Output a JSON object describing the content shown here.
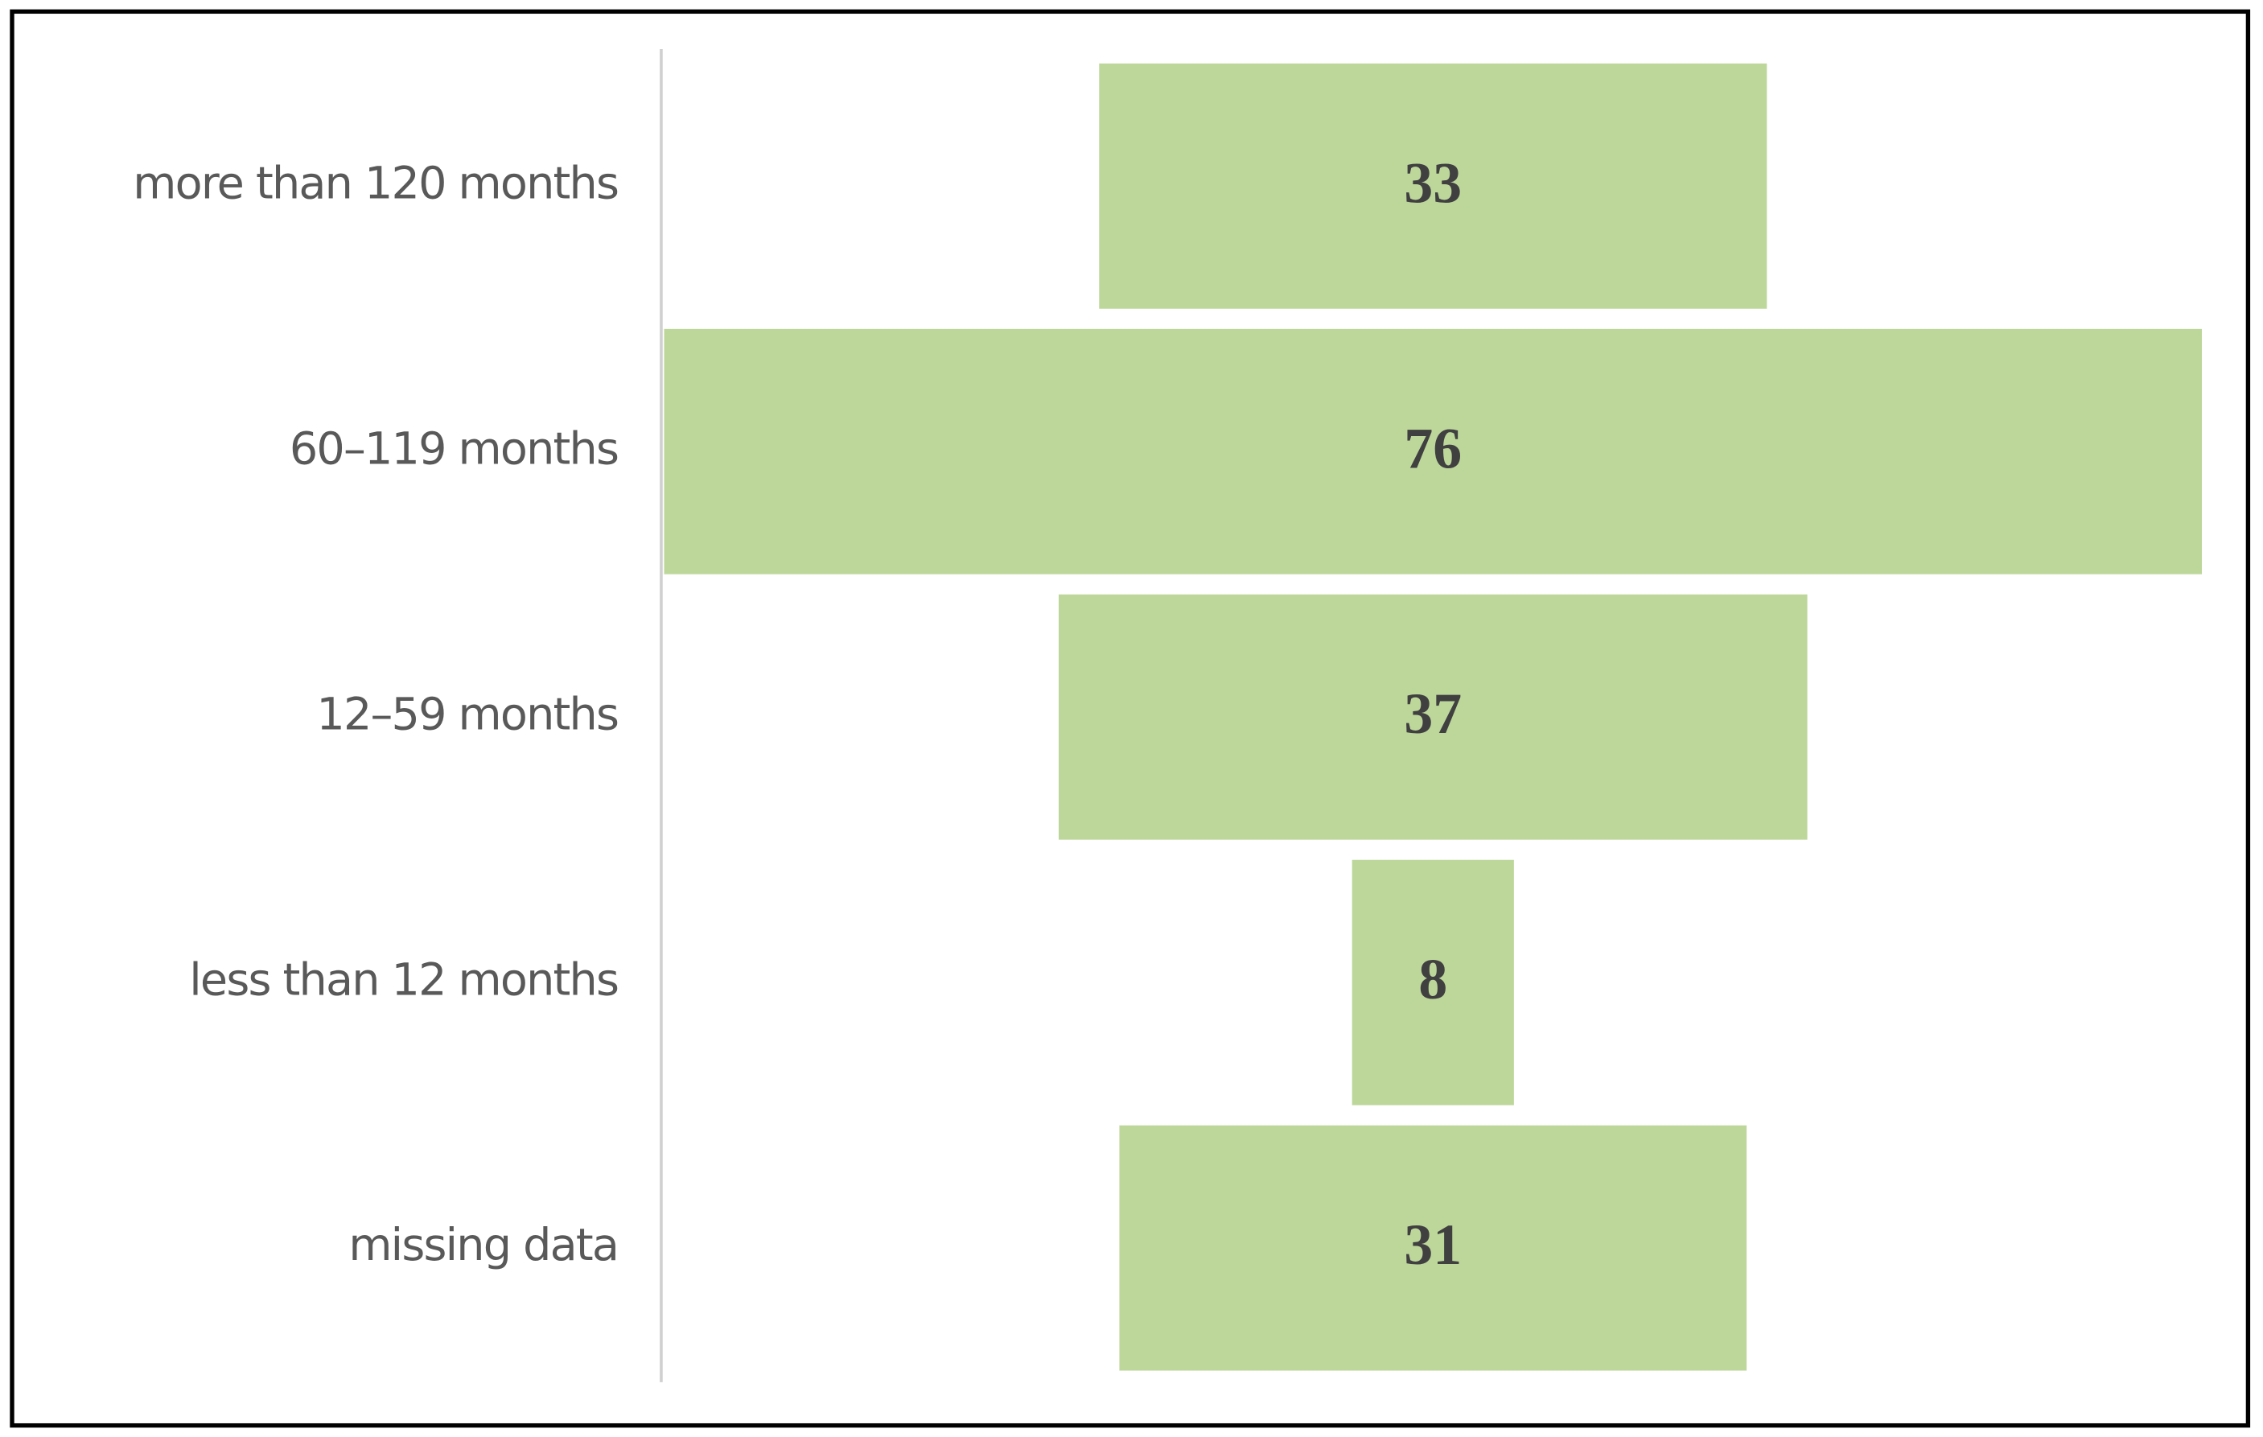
{
  "chart_data": {
    "type": "funnel",
    "categories": [
      "more than 120 months",
      "60–119 months",
      "12–59 months",
      "less than 12 months",
      "missing data"
    ],
    "values": [
      33,
      76,
      37,
      8,
      31
    ],
    "color": "#bdd79b"
  }
}
